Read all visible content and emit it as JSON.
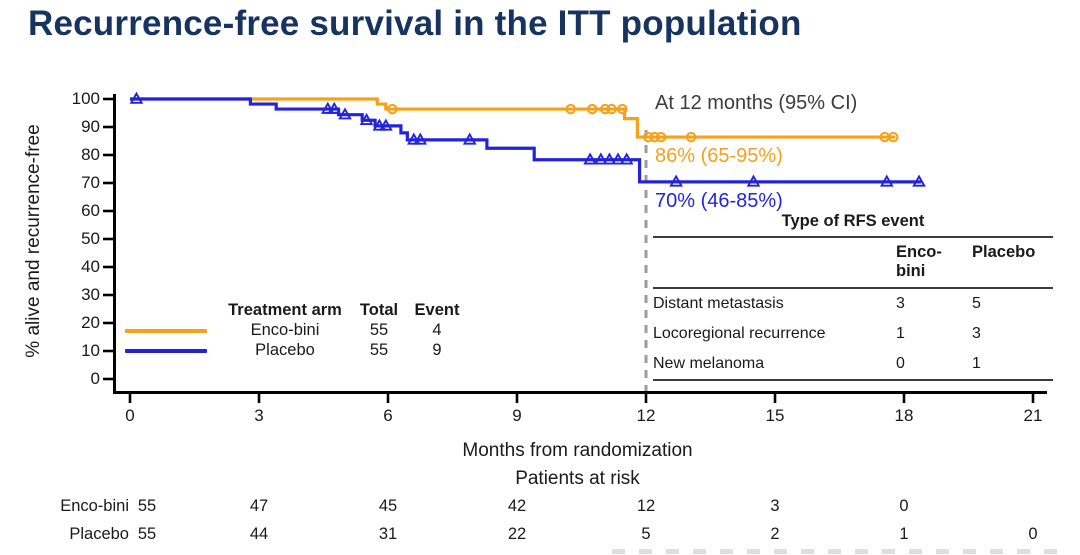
{
  "title": "Recurrence-free survival in the ITT population",
  "colors": {
    "orange": "#F7A11B",
    "blue": "#2323DE",
    "title": "#17335F",
    "annotation": "#3C3C3C",
    "dashed": "#9B9B9B",
    "rule": "#3C3C3C",
    "text": "#1a1a1a",
    "axis": "#000000"
  },
  "annotations": {
    "header": "At 12 months (95% CI)",
    "enco_value": "86% (65-95%)",
    "placebo_value": "70% (46-85%)"
  },
  "legend": {
    "headers": {
      "arm": "Treatment arm",
      "total": "Total",
      "event": "Event"
    },
    "rows": [
      {
        "arm": "Enco-bini",
        "total": "55",
        "event": "4",
        "color": "#F7A11B"
      },
      {
        "arm": "Placebo",
        "total": "55",
        "event": "9",
        "color": "#2323DE"
      }
    ]
  },
  "rfs_table": {
    "title": "Type of RFS event",
    "columns": [
      "Enco-bini",
      "Placebo"
    ],
    "rows": [
      {
        "label": "Distant metastasis",
        "enco": "3",
        "placebo": "5"
      },
      {
        "label": "Locoregional recurrence",
        "enco": "1",
        "placebo": "3"
      },
      {
        "label": "New melanoma",
        "enco": "0",
        "placebo": "1"
      }
    ]
  },
  "risk_table": {
    "caption": "Patients at risk",
    "rows": [
      {
        "label": "Enco-bini",
        "values": [
          "55",
          "47",
          "45",
          "42",
          "12",
          "3",
          "0"
        ]
      },
      {
        "label": "Placebo",
        "values": [
          "55",
          "44",
          "31",
          "22",
          "5",
          "2",
          "1",
          "0"
        ]
      }
    ]
  },
  "chart_data": {
    "type": "line",
    "subtype": "kaplan-meier-step",
    "title": "Recurrence-free survival in the ITT population",
    "xlabel": "Months from randomization",
    "ylabel": "% alive and recurrence-free",
    "xlim": [
      0,
      21.2
    ],
    "ylim": [
      0,
      100
    ],
    "xticks": [
      0,
      3,
      6,
      9,
      12,
      15,
      18,
      21
    ],
    "yticks": [
      0,
      10,
      20,
      30,
      40,
      50,
      60,
      70,
      80,
      90,
      100
    ],
    "grid": false,
    "reference_line_x": 12,
    "series": [
      {
        "name": "Enco-bini",
        "color": "#F7A11B",
        "marker": "circle",
        "total": 55,
        "events": 4,
        "estimate_at_12_months": "86% (65-95%)",
        "steps": [
          [
            0,
            100
          ],
          [
            5.75,
            98.2
          ],
          [
            5.95,
            96.4
          ],
          [
            11.5,
            93.0
          ],
          [
            11.8,
            86.4
          ]
        ],
        "end_month": 17.8,
        "censor_months": [
          6.1,
          10.25,
          10.75,
          11.05,
          11.2,
          11.45,
          12.05,
          12.2,
          12.35,
          13.05,
          17.55,
          17.75
        ]
      },
      {
        "name": "Placebo",
        "color": "#2323DE",
        "marker": "triangle",
        "total": 55,
        "events": 9,
        "estimate_at_12_months": "70% (46-85%)",
        "steps": [
          [
            0,
            100
          ],
          [
            2.8,
            98.2
          ],
          [
            3.4,
            96.4
          ],
          [
            4.85,
            94.4
          ],
          [
            5.4,
            92.4
          ],
          [
            5.7,
            90.4
          ],
          [
            6.3,
            87.9
          ],
          [
            6.45,
            85.4
          ],
          [
            8.3,
            82.4
          ],
          [
            9.4,
            78.3
          ],
          [
            11.85,
            70.4
          ]
        ],
        "end_month": 18.4,
        "censor_months": [
          0.15,
          4.6,
          4.75,
          5.0,
          5.5,
          5.8,
          5.95,
          6.6,
          6.75,
          7.9,
          10.7,
          10.95,
          11.15,
          11.35,
          11.55,
          12.7,
          14.5,
          17.6,
          18.35
        ]
      }
    ]
  }
}
